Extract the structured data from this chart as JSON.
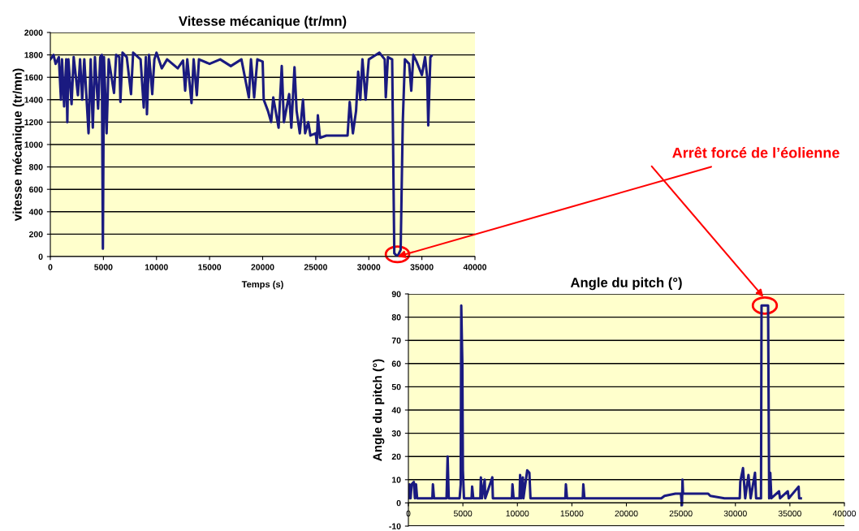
{
  "chart_data": [
    {
      "type": "line",
      "title": "Vitesse mécanique (tr/mn)",
      "xlabel": "Temps (s)",
      "ylabel": "vitesse mécanique (tr/mn)",
      "x": [
        0,
        300,
        500,
        800,
        1000,
        1100,
        1300,
        1500,
        1600,
        1700,
        2000,
        2200,
        2600,
        2800,
        3000,
        3200,
        3600,
        3800,
        4000,
        4200,
        4500,
        4700,
        4850,
        4950,
        5050,
        5300,
        5500,
        6000,
        6200,
        6500,
        6600,
        6800,
        7200,
        7600,
        7800,
        8500,
        8800,
        9000,
        9100,
        9300,
        9600,
        9800,
        10000,
        10500,
        11000,
        12000,
        12500,
        12700,
        12900,
        13300,
        13500,
        13800,
        14000,
        15000,
        16000,
        17000,
        18000,
        18700,
        18900,
        19200,
        19500,
        20000,
        20100,
        20500,
        20800,
        21000,
        21500,
        21800,
        22000,
        22500,
        22700,
        23000,
        23200,
        23500,
        23800,
        24000,
        24300,
        24500,
        25000,
        25100,
        25200,
        25400,
        26000,
        27000,
        28000,
        28200,
        28500,
        28800,
        29000,
        29200,
        29400,
        29700,
        30000,
        30500,
        31000,
        31500,
        31600,
        31800,
        32200,
        32400,
        32700,
        33000,
        33200,
        33400,
        33800,
        34000,
        34200,
        34500,
        35000,
        35300,
        35500,
        35600,
        35800,
        35900
      ],
      "series": [
        {
          "color": "#1a1a80",
          "values": [
            1760,
            1800,
            1720,
            1780,
            1400,
            1760,
            1340,
            1760,
            1200,
            1760,
            1360,
            1780,
            1440,
            1760,
            1400,
            1760,
            1100,
            1760,
            1150,
            1780,
            1320,
            1780,
            1800,
            70,
            1780,
            1100,
            1760,
            1460,
            1800,
            1780,
            1380,
            1820,
            1780,
            1450,
            1820,
            1760,
            1330,
            1780,
            1270,
            1800,
            1450,
            1760,
            1820,
            1680,
            1760,
            1680,
            1750,
            1480,
            1760,
            1370,
            1760,
            1440,
            1760,
            1720,
            1760,
            1700,
            1760,
            1420,
            1760,
            1420,
            1760,
            1740,
            1400,
            1300,
            1200,
            1420,
            1150,
            1700,
            1200,
            1450,
            1150,
            1690,
            1300,
            1100,
            1400,
            1100,
            1200,
            1080,
            1100,
            1010,
            1260,
            1060,
            1080,
            1080,
            1080,
            1380,
            1100,
            1300,
            1650,
            1400,
            1760,
            1400,
            1760,
            1790,
            1820,
            1760,
            1420,
            1780,
            1760,
            30,
            0,
            60,
            1200,
            1760,
            1720,
            1480,
            1800,
            1740,
            1620,
            1780,
            1600,
            1170,
            1780,
            1790
          ]
        }
      ],
      "xlim": [
        0,
        40000
      ],
      "xticks": [
        0,
        5000,
        10000,
        15000,
        20000,
        25000,
        30000,
        35000,
        40000
      ],
      "ylim": [
        0,
        2000
      ],
      "yticks": [
        0,
        200,
        400,
        600,
        800,
        1000,
        1200,
        1400,
        1600,
        1800,
        2000
      ],
      "grid": "y",
      "legend": false,
      "marker": "none",
      "line_style": "solid",
      "annotations": [
        {
          "text": "Arrêt forcé de l’éolienne",
          "x": 32700,
          "y": 0
        }
      ]
    },
    {
      "type": "line",
      "title": "Angle du pitch (°)",
      "ylabel": "Angle du pitch (°)",
      "x": [
        0,
        100,
        200,
        300,
        500,
        600,
        700,
        800,
        2200,
        2250,
        2350,
        3500,
        3600,
        3700,
        4700,
        4800,
        4850,
        4950,
        5000,
        5100,
        5800,
        5850,
        5950,
        6600,
        6650,
        6750,
        7000,
        7050,
        7700,
        7750,
        9500,
        9550,
        9650,
        10200,
        10250,
        10350,
        10500,
        10550,
        10900,
        11100,
        11200,
        14400,
        14450,
        14550,
        16000,
        16050,
        16150,
        23200,
        23500,
        24500,
        25000,
        25100,
        25150,
        25200,
        26000,
        27500,
        27700,
        29000,
        30400,
        30450,
        30700,
        30900,
        31200,
        31400,
        31800,
        31900,
        32350,
        32400,
        33000,
        33100,
        33200,
        33300,
        34000,
        34100,
        34800,
        34900,
        35800,
        35850,
        36000
      ],
      "series": [
        {
          "color": "#1a1a80",
          "values": [
            2,
            8,
            2,
            8,
            9,
            2,
            8,
            2,
            2,
            8,
            2,
            2,
            20,
            2,
            2,
            8,
            85,
            60,
            14,
            2,
            2,
            7,
            2,
            2,
            11,
            2,
            10,
            2,
            11,
            2,
            2,
            8,
            2,
            2,
            12,
            2,
            11,
            2,
            14,
            13,
            2,
            2,
            8,
            2,
            2,
            8,
            2,
            2,
            3,
            4,
            4,
            -1,
            10,
            4,
            4,
            4,
            3,
            2,
            2,
            9,
            15,
            2,
            12,
            2,
            13,
            2,
            2,
            85,
            85,
            2,
            13,
            2,
            5,
            2,
            5,
            2,
            7,
            2,
            2
          ]
        }
      ],
      "xlim": [
        0,
        40000
      ],
      "xticks": [
        0,
        5000,
        10000,
        15000,
        20000,
        25000,
        30000,
        35000,
        40000
      ],
      "ylim": [
        -10,
        90
      ],
      "yticks": [
        -10,
        0,
        10,
        20,
        30,
        40,
        50,
        60,
        70,
        80,
        90
      ],
      "grid": "y",
      "legend": false,
      "marker": "none",
      "line_style": "solid"
    }
  ]
}
